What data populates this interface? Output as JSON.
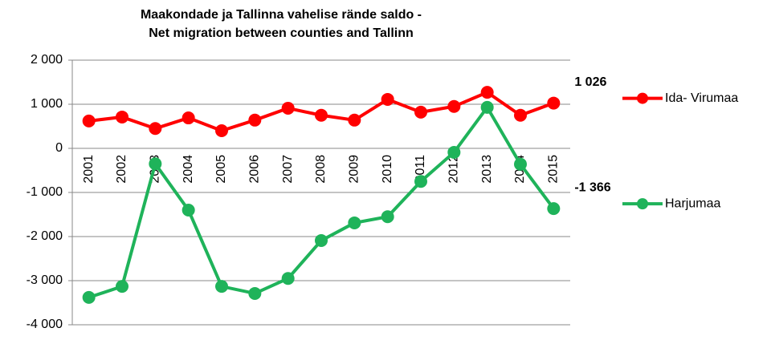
{
  "chart_data": {
    "type": "line",
    "title": [
      "Maakondade ja Tallinna vahelise rände saldo -",
      "Net migration between  counties and Tallinn"
    ],
    "categories": [
      "2001",
      "2002",
      "2003",
      "2004",
      "2005",
      "2006",
      "2007",
      "2008",
      "2009",
      "2010",
      "2011",
      "2012",
      "2013",
      "2014",
      "2015"
    ],
    "series": [
      {
        "name": "Ida- Virumaa",
        "color": "#ff0000",
        "values": [
          620,
          710,
          450,
          690,
          400,
          640,
          910,
          750,
          640,
          1110,
          820,
          950,
          1270,
          750,
          1026
        ],
        "value_labels": [
          null,
          null,
          null,
          null,
          null,
          null,
          null,
          null,
          null,
          null,
          null,
          null,
          null,
          null,
          "1 026"
        ]
      },
      {
        "name": "Harjumaa",
        "color": "#1fb35a",
        "values": [
          -3380,
          -3130,
          -350,
          -1400,
          -3130,
          -3290,
          -2950,
          -2090,
          -1690,
          -1550,
          -750,
          -90,
          930,
          -360,
          -1366
        ],
        "value_labels": [
          null,
          null,
          null,
          null,
          null,
          null,
          null,
          null,
          null,
          null,
          null,
          null,
          null,
          null,
          "-1 366"
        ]
      }
    ],
    "ylim": [
      -4000,
      2000
    ],
    "yticks": [
      {
        "value": -4000,
        "label": "-4 000"
      },
      {
        "value": -3000,
        "label": "-3 000"
      },
      {
        "value": -2000,
        "label": "-2 000"
      },
      {
        "value": -1000,
        "label": "-1 000"
      },
      0,
      {
        "value": 1000,
        "label": "1 000"
      },
      {
        "value": 2000,
        "label": "2 000"
      }
    ],
    "grid": true,
    "legend": "right"
  }
}
